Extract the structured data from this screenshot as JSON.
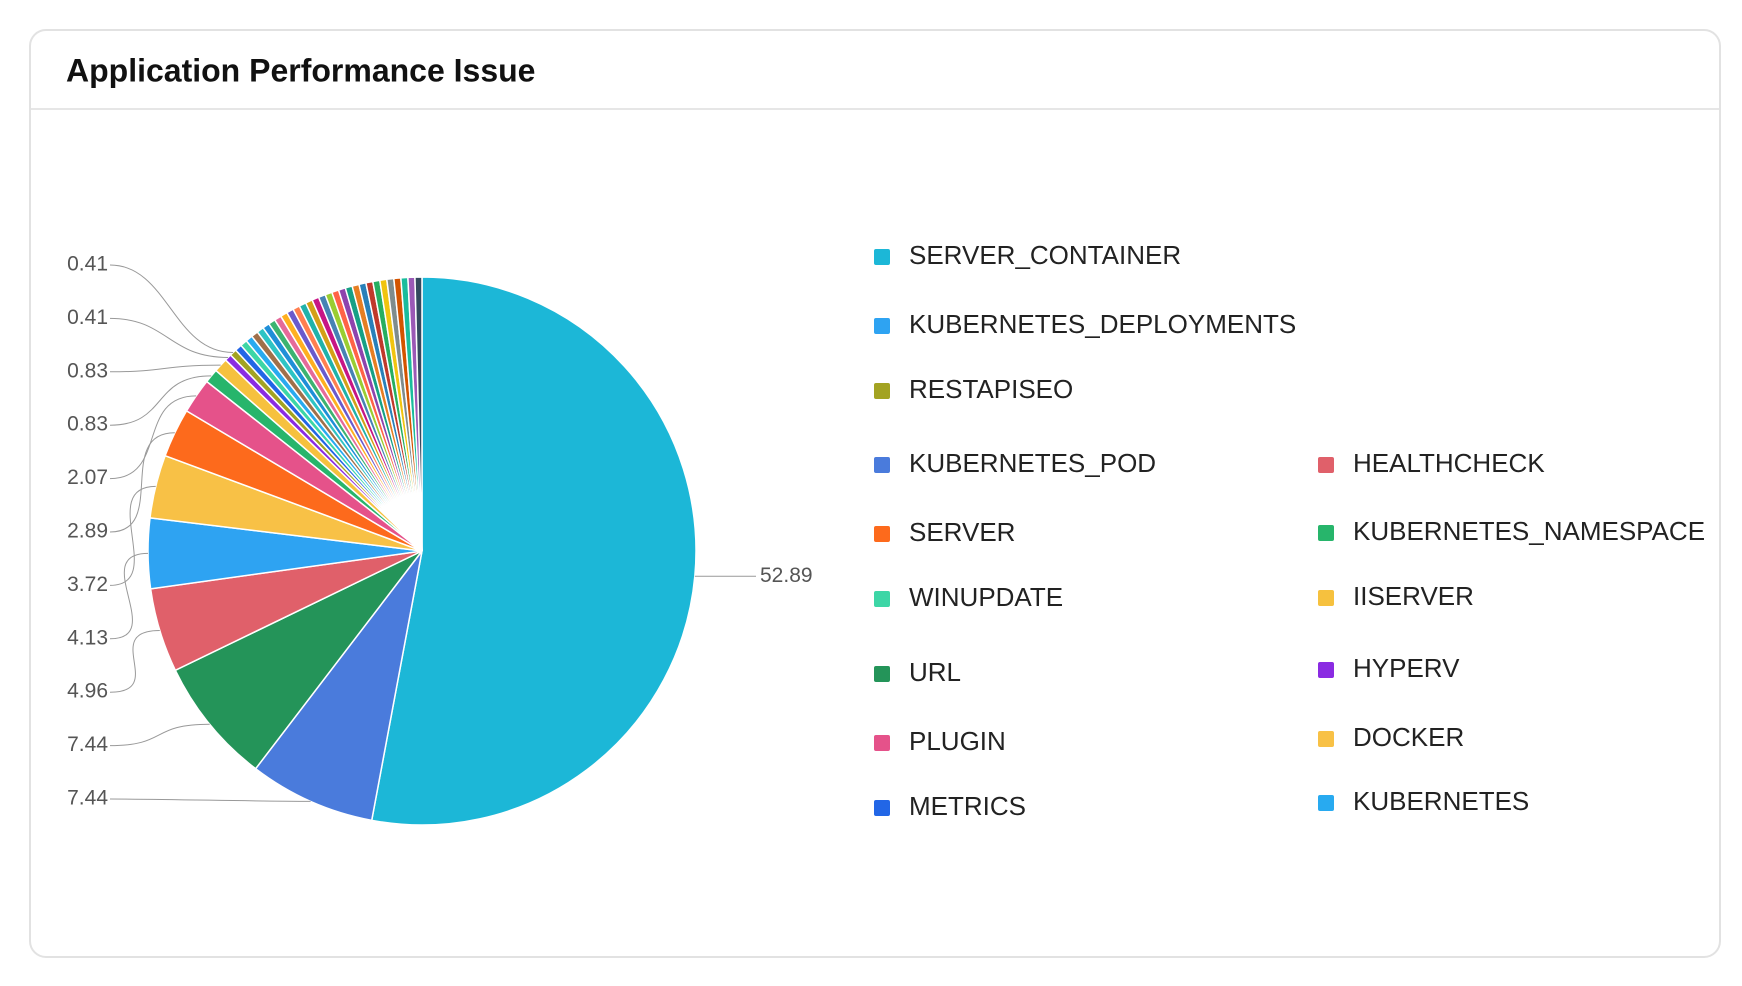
{
  "chart_data": {
    "type": "pie",
    "title": "Application Performance Issue",
    "categories": [
      "SERVER_CONTAINER",
      "KUBERNETES_POD",
      "URL",
      "HEALTHCHECK",
      "KUBERNETES_DEPLOYMENTS",
      "DOCKER",
      "SERVER",
      "PLUGIN",
      "KUBERNETES_NAMESPACE",
      "IISERVER",
      "HYPERV",
      "RESTAPISEO",
      "METRICS",
      "WINUPDATE",
      "KUBERNETES",
      null,
      null,
      null,
      null,
      null,
      null,
      null,
      null,
      null,
      null,
      null,
      null,
      null,
      null,
      null,
      null,
      null,
      null,
      null,
      null,
      null,
      null,
      null,
      null,
      null,
      null
    ],
    "values": [
      52.89,
      7.44,
      7.44,
      4.96,
      4.13,
      3.72,
      2.89,
      2.07,
      0.83,
      0.83,
      0.41,
      0.41,
      0.41,
      0.41,
      0.41,
      0.41,
      0.41,
      0.41,
      0.41,
      0.41,
      0.41,
      0.41,
      0.41,
      0.41,
      0.41,
      0.41,
      0.41,
      0.41,
      0.41,
      0.41,
      0.41,
      0.41,
      0.41,
      0.41,
      0.41,
      0.41,
      0.41,
      0.41,
      0.41,
      0.41,
      0.41
    ],
    "value_labels": [
      "52.89",
      "7.44",
      "7.44",
      "4.96",
      "4.13",
      "3.72",
      "2.89",
      "2.07",
      "0.83",
      "0.83",
      "0.41",
      "0.41",
      null,
      null,
      null,
      null,
      null,
      null,
      null,
      null,
      null,
      null,
      null,
      null,
      null,
      null,
      null,
      null,
      null,
      null,
      null,
      null,
      null,
      null,
      null,
      null,
      null,
      null,
      null,
      null,
      null
    ],
    "colors": [
      "#1cb7d7",
      "#4a7bdc",
      "#249459",
      "#e0606a",
      "#2ea3f2",
      "#f8c146",
      "#fd6a1c",
      "#e5528a",
      "#27b56b",
      "#f6c13e",
      "#8a2be2",
      "#a3a322",
      "#2266e6",
      "#3dd6a6",
      "#28aaf0",
      "#a0704a",
      "#2ec4c4",
      "#1f8fd8",
      "#3cb371",
      "#e56a9a",
      "#ffb020",
      "#6a5acd",
      "#ff7f50",
      "#20b2aa",
      "#d4a017",
      "#c71585",
      "#4682b4",
      "#9acd32",
      "#ff6347",
      "#8e44ad",
      "#16a085",
      "#e67e22",
      "#2980b9",
      "#c0392b",
      "#27ae60",
      "#f1c40f",
      "#7f8c8d",
      "#d35400",
      "#1abc9c",
      "#9b59b6",
      "#34495e"
    ]
  }
}
